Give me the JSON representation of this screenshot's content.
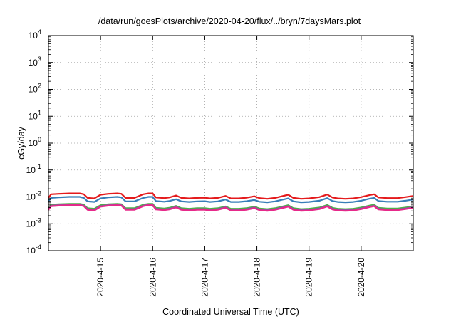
{
  "chart_data": {
    "type": "line",
    "title": "/data/run/goesPlots/archive/2020-04-20/flux/../bryn/7daysMars.plot",
    "xlabel": "Coordinated Universal Time (UTC)",
    "ylabel": "cGy/day",
    "y_scale": "log",
    "ylim": [
      0.0001,
      10000
    ],
    "xlim": [
      14.0,
      21.0
    ],
    "grid": true,
    "y_ticks": [
      {
        "value": 0.0001,
        "base": "10",
        "exp": "-4"
      },
      {
        "value": 0.001,
        "base": "10",
        "exp": "-3"
      },
      {
        "value": 0.01,
        "base": "10",
        "exp": "-2"
      },
      {
        "value": 0.1,
        "base": "10",
        "exp": "-1"
      },
      {
        "value": 1,
        "base": "10",
        "exp": "0"
      },
      {
        "value": 10,
        "base": "10",
        "exp": "1"
      },
      {
        "value": 100,
        "base": "10",
        "exp": "2"
      },
      {
        "value": 1000,
        "base": "10",
        "exp": "3"
      },
      {
        "value": 10000,
        "base": "10",
        "exp": "4"
      }
    ],
    "x_ticks": [
      {
        "value": 15,
        "label": "2020-4-15"
      },
      {
        "value": 16,
        "label": "2020-4-16"
      },
      {
        "value": 17,
        "label": "2020-4-17"
      },
      {
        "value": 18,
        "label": "2020-4-18"
      },
      {
        "value": 19,
        "label": "2020-4-19"
      },
      {
        "value": 20,
        "label": "2020-4-20"
      }
    ],
    "series": [
      {
        "color": "#e41a1c",
        "x": [
          14.0,
          14.05,
          14.2,
          14.4,
          14.6,
          14.68,
          14.75,
          14.88,
          15.0,
          15.15,
          15.32,
          15.4,
          15.48,
          15.65,
          15.82,
          15.92,
          16.0,
          16.06,
          16.22,
          16.32,
          16.45,
          16.55,
          16.7,
          16.85,
          17.0,
          17.1,
          17.25,
          17.4,
          17.5,
          17.65,
          17.8,
          17.95,
          18.05,
          18.2,
          18.35,
          18.6,
          18.7,
          18.85,
          19.0,
          19.2,
          19.35,
          19.45,
          19.55,
          19.7,
          19.85,
          20.0,
          20.15,
          20.25,
          20.33,
          20.5,
          20.7,
          20.85,
          21.0
        ],
        "y": [
          0.0092,
          0.0125,
          0.013,
          0.0135,
          0.0135,
          0.0125,
          0.0092,
          0.0088,
          0.012,
          0.013,
          0.0135,
          0.013,
          0.0092,
          0.0092,
          0.0125,
          0.0135,
          0.0135,
          0.0095,
          0.009,
          0.0095,
          0.0112,
          0.0092,
          0.0088,
          0.0092,
          0.0093,
          0.0088,
          0.0092,
          0.0108,
          0.0088,
          0.0088,
          0.0093,
          0.0105,
          0.009,
          0.0085,
          0.0092,
          0.012,
          0.0092,
          0.0085,
          0.0088,
          0.0098,
          0.0122,
          0.0095,
          0.0088,
          0.0085,
          0.0088,
          0.0098,
          0.0115,
          0.0125,
          0.0095,
          0.009,
          0.009,
          0.0098,
          0.0108
        ]
      },
      {
        "color": "#377eb8",
        "x": [
          14.0,
          14.05,
          14.2,
          14.4,
          14.6,
          14.68,
          14.75,
          14.88,
          15.0,
          15.15,
          15.32,
          15.4,
          15.48,
          15.65,
          15.82,
          15.92,
          16.0,
          16.06,
          16.22,
          16.32,
          16.45,
          16.55,
          16.7,
          16.85,
          17.0,
          17.1,
          17.25,
          17.4,
          17.5,
          17.65,
          17.8,
          17.95,
          18.05,
          18.2,
          18.35,
          18.6,
          18.7,
          18.85,
          19.0,
          19.2,
          19.35,
          19.45,
          19.55,
          19.7,
          19.85,
          20.0,
          20.15,
          20.25,
          20.33,
          20.5,
          20.7,
          20.85,
          21.0
        ],
        "y": [
          0.0068,
          0.0092,
          0.0096,
          0.01,
          0.01,
          0.0092,
          0.0068,
          0.0065,
          0.0088,
          0.0096,
          0.01,
          0.0096,
          0.0068,
          0.0068,
          0.0092,
          0.01,
          0.01,
          0.007,
          0.0066,
          0.007,
          0.0082,
          0.0068,
          0.0065,
          0.0068,
          0.0069,
          0.0065,
          0.0068,
          0.008,
          0.0065,
          0.0065,
          0.0069,
          0.0077,
          0.0066,
          0.0063,
          0.0068,
          0.0088,
          0.0068,
          0.0063,
          0.0065,
          0.0072,
          0.009,
          0.007,
          0.0065,
          0.0063,
          0.0065,
          0.0072,
          0.0085,
          0.0092,
          0.007,
          0.0066,
          0.0066,
          0.0072,
          0.008
        ]
      },
      {
        "color": "#4daf4a",
        "x": [
          14.0,
          14.05,
          14.2,
          14.4,
          14.6,
          14.68,
          14.75,
          14.88,
          15.0,
          15.15,
          15.32,
          15.4,
          15.48,
          15.65,
          15.82,
          15.92,
          16.0,
          16.06,
          16.22,
          16.32,
          16.45,
          16.55,
          16.7,
          16.85,
          17.0,
          17.1,
          17.25,
          17.4,
          17.5,
          17.65,
          17.8,
          17.95,
          18.05,
          18.2,
          18.35,
          18.6,
          18.7,
          18.85,
          19.0,
          19.2,
          19.35,
          19.45,
          19.55,
          19.7,
          19.85,
          20.0,
          20.15,
          20.25,
          20.33,
          20.5,
          20.7,
          20.85,
          21.0
        ],
        "y": [
          0.0038,
          0.0051,
          0.0053,
          0.0055,
          0.0055,
          0.0051,
          0.0038,
          0.0036,
          0.0049,
          0.0053,
          0.0055,
          0.0053,
          0.0038,
          0.0038,
          0.0051,
          0.0055,
          0.0055,
          0.0039,
          0.0037,
          0.0039,
          0.0046,
          0.0038,
          0.0036,
          0.0038,
          0.0038,
          0.0036,
          0.0038,
          0.0044,
          0.0036,
          0.0036,
          0.0038,
          0.0043,
          0.0037,
          0.0035,
          0.0038,
          0.0049,
          0.0038,
          0.0035,
          0.0036,
          0.004,
          0.005,
          0.0039,
          0.0036,
          0.0035,
          0.0036,
          0.004,
          0.0047,
          0.0051,
          0.0039,
          0.0037,
          0.0037,
          0.004,
          0.0044
        ]
      },
      {
        "color": "#984ea3",
        "x": [
          14.0,
          14.05,
          14.2,
          14.4,
          14.6,
          14.68,
          14.75,
          14.88,
          15.0,
          15.15,
          15.32,
          15.4,
          15.48,
          15.65,
          15.82,
          15.92,
          16.0,
          16.06,
          16.22,
          16.32,
          16.45,
          16.55,
          16.7,
          16.85,
          17.0,
          17.1,
          17.25,
          17.4,
          17.5,
          17.65,
          17.8,
          17.95,
          18.05,
          18.2,
          18.35,
          18.6,
          18.7,
          18.85,
          19.0,
          19.2,
          19.35,
          19.45,
          19.55,
          19.7,
          19.85,
          20.0,
          20.15,
          20.25,
          20.33,
          20.5,
          20.7,
          20.85,
          21.0
        ],
        "y": [
          0.0035,
          0.0047,
          0.0049,
          0.0051,
          0.0051,
          0.0047,
          0.0035,
          0.0033,
          0.0045,
          0.0049,
          0.0051,
          0.0049,
          0.0035,
          0.0035,
          0.0047,
          0.0051,
          0.0051,
          0.0036,
          0.0034,
          0.0036,
          0.0042,
          0.0035,
          0.0033,
          0.0035,
          0.0035,
          0.0033,
          0.0035,
          0.0041,
          0.0033,
          0.0033,
          0.0035,
          0.004,
          0.0034,
          0.0032,
          0.0035,
          0.0045,
          0.0035,
          0.0032,
          0.0033,
          0.0037,
          0.0046,
          0.0036,
          0.0033,
          0.0032,
          0.0033,
          0.0037,
          0.0043,
          0.0047,
          0.0036,
          0.0034,
          0.0034,
          0.0037,
          0.0041
        ]
      },
      {
        "color": "#e7298a",
        "x": [
          14.0,
          14.05,
          14.2,
          14.4,
          14.6,
          14.68,
          14.75,
          14.88,
          15.0,
          15.15,
          15.32,
          15.4,
          15.48,
          15.65,
          15.82,
          15.92,
          16.0,
          16.06,
          16.22,
          16.32,
          16.45,
          16.55,
          16.7,
          16.85,
          17.0,
          17.1,
          17.25,
          17.4,
          17.5,
          17.65,
          17.8,
          17.95,
          18.05,
          18.2,
          18.35,
          18.6,
          18.7,
          18.85,
          19.0,
          19.2,
          19.35,
          19.45,
          19.55,
          19.7,
          19.85,
          20.0,
          20.15,
          20.25,
          20.33,
          20.5,
          20.7,
          20.85,
          21.0
        ],
        "y": [
          0.0033,
          0.0045,
          0.0047,
          0.0049,
          0.0049,
          0.0045,
          0.0033,
          0.0031,
          0.0043,
          0.0047,
          0.0049,
          0.0047,
          0.0033,
          0.0033,
          0.0045,
          0.0049,
          0.0049,
          0.0034,
          0.0032,
          0.0034,
          0.004,
          0.0033,
          0.0031,
          0.0033,
          0.0033,
          0.0031,
          0.0033,
          0.0039,
          0.0031,
          0.0031,
          0.0033,
          0.0038,
          0.0032,
          0.003,
          0.0033,
          0.0043,
          0.0033,
          0.003,
          0.0031,
          0.0035,
          0.0044,
          0.0034,
          0.0031,
          0.003,
          0.0031,
          0.0035,
          0.0041,
          0.0045,
          0.0034,
          0.0032,
          0.0032,
          0.0035,
          0.0039
        ]
      }
    ]
  }
}
